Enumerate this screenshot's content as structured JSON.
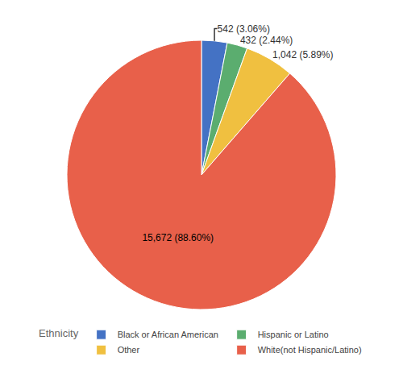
{
  "chart_data": {
    "type": "pie",
    "categories": [
      "Black or African American",
      "Hispanic or Latino",
      "Other",
      "White(not Hispanic/Latino)"
    ],
    "values": [
      542,
      432,
      1042,
      15672
    ],
    "value_labels": [
      "542 (3.06%)",
      "432 (2.44%)",
      "1,042 (5.89%)",
      "15,672 (88.60%)"
    ],
    "data_labels": true,
    "colors": [
      "#4472C4",
      "#5BAD6F",
      "#F0C040",
      "#E8604A"
    ],
    "legend": "bottom",
    "legend_title": "Ethnicity"
  }
}
